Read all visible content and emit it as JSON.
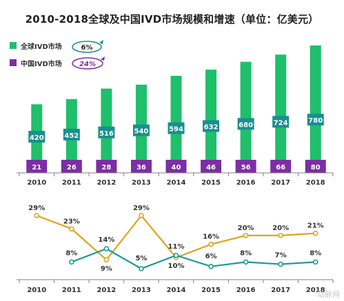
{
  "title": "2010-2018全球及中国IVD市场规模和增速（单位：亿美元）",
  "colors": {
    "global": "#1fbf6b",
    "china": "#7b2fa3",
    "global_label_bg": "#1a8f8e",
    "global_growth_line": "#1a9a97",
    "china_growth_line": "#e0a319",
    "axis": "#808080"
  },
  "chart_data": [
    {
      "type": "bar",
      "categories": [
        "2010",
        "2011",
        "2012",
        "2013",
        "2014",
        "2015",
        "2016",
        "2017",
        "2018"
      ],
      "series": [
        {
          "name": "全球IVD市场",
          "badge": "6%",
          "values": [
            420,
            452,
            516,
            540,
            594,
            632,
            680,
            724,
            780
          ]
        },
        {
          "name": "中国IVD市场",
          "badge": "24%",
          "values": [
            21,
            26,
            28,
            36,
            40,
            46,
            56,
            66,
            80
          ]
        }
      ],
      "legend": "top-left",
      "grid": false
    },
    {
      "type": "line",
      "categories": [
        "2010",
        "2011",
        "2012",
        "2013",
        "2014",
        "2015",
        "2016",
        "2017",
        "2018"
      ],
      "series": [
        {
          "key": "china_growth",
          "values": [
            29,
            23,
            9,
            29,
            10,
            null,
            null,
            null,
            null
          ],
          "labels": [
            "29%",
            "23%",
            "9%",
            "29%",
            "10%",
            "16%",
            "20%",
            "20%",
            "21%"
          ],
          "plot": [
            29,
            23,
            9,
            29,
            10,
            16,
            20,
            20,
            21
          ]
        },
        {
          "key": "global_growth",
          "values": [
            null,
            8,
            14,
            5,
            11,
            6,
            8,
            7,
            8
          ],
          "labels": [
            "",
            "8%",
            "14%",
            "5%",
            "11%",
            "6%",
            "8%",
            "7%",
            "8%"
          ]
        }
      ],
      "grid": false
    }
  ],
  "watermark": "动脉网"
}
